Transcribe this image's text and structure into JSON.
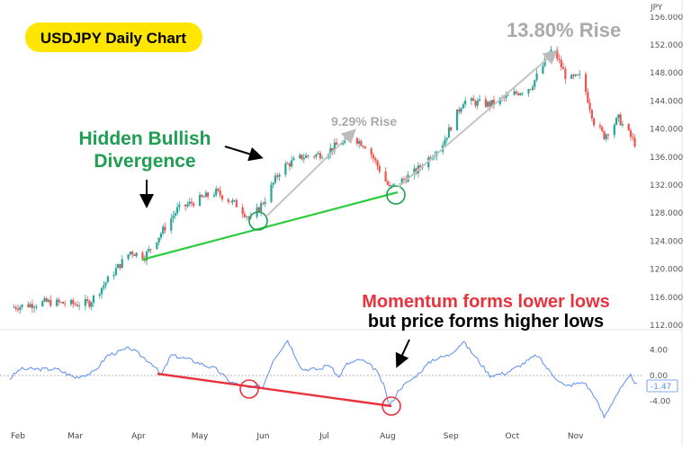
{
  "chart_data": {
    "type": "candlestick",
    "title": "USDJPY Daily Chart",
    "currency_label": "JPY",
    "price_axis": {
      "ticks": [
        "156.000",
        "152.000",
        "148.000",
        "144.000",
        "140.000",
        "136.000",
        "132.000",
        "128.000",
        "124.000",
        "120.000",
        "116.000",
        "112.000"
      ],
      "range": [
        112,
        156
      ]
    },
    "momentum_axis": {
      "ticks": [
        "4.00",
        "0.00",
        "-4.00"
      ],
      "current_value": "-1.47",
      "range": [
        -7,
        8
      ]
    },
    "x_axis": {
      "months": [
        "Feb",
        "Mar",
        "Apr",
        "May",
        "Jun",
        "Jul",
        "Aug",
        "Sep",
        "Oct",
        "Nov"
      ]
    },
    "grid": false,
    "price_path": [
      [
        "01-28",
        114.5
      ],
      [
        "02-15",
        115.3
      ],
      [
        "03-01",
        115.0
      ],
      [
        "03-08",
        115.2
      ],
      [
        "03-17",
        118.5
      ],
      [
        "03-28",
        122.5
      ],
      [
        "04-04",
        121.8
      ],
      [
        "04-20",
        128.5
      ],
      [
        "05-01",
        130.0
      ],
      [
        "05-09",
        131.0
      ],
      [
        "05-20",
        129.0
      ],
      [
        "05-26",
        127.0
      ],
      [
        "06-02",
        130.0
      ],
      [
        "06-10",
        134.5
      ],
      [
        "06-20",
        136.0
      ],
      [
        "07-01",
        136.5
      ],
      [
        "07-14",
        139.0
      ],
      [
        "07-22",
        137.5
      ],
      [
        "08-02",
        131.5
      ],
      [
        "08-15",
        134.0
      ],
      [
        "08-28",
        138.0
      ],
      [
        "09-07",
        144.0
      ],
      [
        "09-20",
        143.5
      ],
      [
        "09-28",
        144.5
      ],
      [
        "10-10",
        146.0
      ],
      [
        "10-21",
        151.5
      ],
      [
        "10-28",
        147.0
      ],
      [
        "11-04",
        147.5
      ],
      [
        "11-10",
        141.0
      ],
      [
        "11-15",
        139.0
      ],
      [
        "11-22",
        141.5
      ],
      [
        "11-30",
        138.0
      ]
    ],
    "momentum_path": [
      [
        "01-28",
        -0.5
      ],
      [
        "02-02",
        1.0
      ],
      [
        "02-20",
        1.0
      ],
      [
        "03-01",
        -0.3
      ],
      [
        "03-10",
        0.5
      ],
      [
        "03-17",
        3.2
      ],
      [
        "03-28",
        4.3
      ],
      [
        "04-08",
        1.8
      ],
      [
        "04-12",
        0.0
      ],
      [
        "04-17",
        3.2
      ],
      [
        "04-26",
        2.5
      ],
      [
        "05-09",
        1.0
      ],
      [
        "05-16",
        -1.0
      ],
      [
        "05-25",
        -2.0
      ],
      [
        "06-01",
        -1.7
      ],
      [
        "06-06",
        2.5
      ],
      [
        "06-13",
        5.6
      ],
      [
        "06-20",
        1.0
      ],
      [
        "06-29",
        1.0
      ],
      [
        "07-03",
        1.8
      ],
      [
        "07-08",
        -0.3
      ],
      [
        "07-12",
        1.8
      ],
      [
        "07-19",
        2.5
      ],
      [
        "07-26",
        1.0
      ],
      [
        "07-30",
        -1.5
      ],
      [
        "08-02",
        -4.8
      ],
      [
        "08-07",
        -2.0
      ],
      [
        "08-14",
        -0.3
      ],
      [
        "08-23",
        2.5
      ],
      [
        "08-31",
        3.2
      ],
      [
        "09-07",
        5.3
      ],
      [
        "09-14",
        2.5
      ],
      [
        "09-20",
        0.0
      ],
      [
        "09-28",
        0.4
      ],
      [
        "10-06",
        1.8
      ],
      [
        "10-13",
        3.2
      ],
      [
        "10-20",
        0.4
      ],
      [
        "10-27",
        -1.7
      ],
      [
        "11-05",
        -1.0
      ],
      [
        "11-10",
        -3.1
      ],
      [
        "11-15",
        -6.5
      ],
      [
        "11-21",
        -3.0
      ],
      [
        "11-28",
        0.0
      ],
      [
        "12-01",
        -1.47
      ]
    ],
    "annotations": {
      "rise_small": "9.29% Rise",
      "rise_large": "13.80% Rise",
      "divergence_line1": "Hidden Bullish",
      "divergence_line2": "Divergence",
      "momentum_line1": "Momentum forms lower lows",
      "momentum_line2": "but price forms higher lows"
    },
    "colors": {
      "up": "#26a69a",
      "down": "#ef5350",
      "momentum": "#5b8def",
      "divergence_green": "#1e9e50",
      "divergence_red": "#e8323c",
      "title_bg": "#ffe600",
      "rise_text": "#aaaaaa"
    }
  }
}
